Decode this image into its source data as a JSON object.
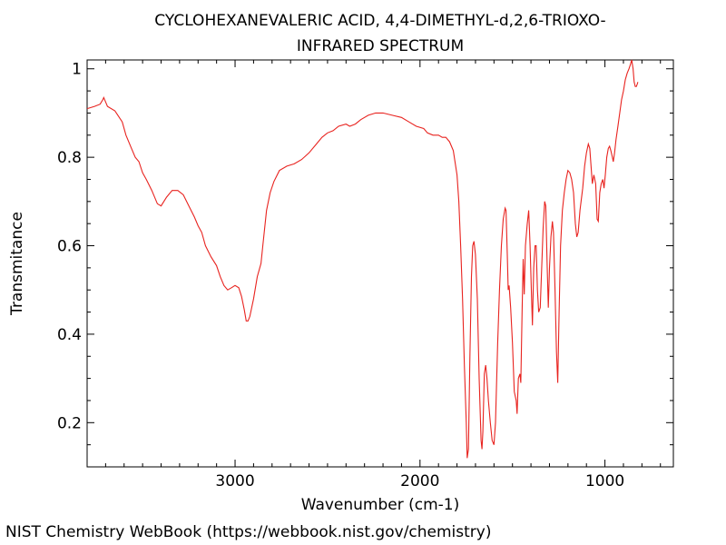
{
  "footer": "NIST Chemistry WebBook (https://webbook.nist.gov/chemistry)",
  "chart_data": {
    "type": "line",
    "title": [
      "CYCLOHEXANEVALERIC ACID, 4,4-DIMETHYL-d,2,6-TRIOXO-",
      "INFRARED SPECTRUM"
    ],
    "xlabel": "Wavenumber (cm-1)",
    "ylabel": "Transmitance",
    "xlim": [
      3800,
      630
    ],
    "ylim": [
      0.1,
      1.02
    ],
    "x_ticks": [
      3000,
      2000,
      1000
    ],
    "x_tick_labels": [
      "3000",
      "2000",
      "1000"
    ],
    "y_ticks": [
      0.2,
      0.4,
      0.6,
      0.8,
      1.0
    ],
    "y_tick_labels": [
      "0.2",
      "0.4",
      "0.6",
      "0.8",
      "1"
    ],
    "grid": false,
    "line_color": "#e8231f",
    "series": [
      {
        "points": [
          [
            3800,
            0.91
          ],
          [
            3760,
            0.915
          ],
          [
            3730,
            0.92
          ],
          [
            3715,
            0.93
          ],
          [
            3710,
            0.935
          ],
          [
            3700,
            0.925
          ],
          [
            3690,
            0.915
          ],
          [
            3650,
            0.905
          ],
          [
            3610,
            0.88
          ],
          [
            3590,
            0.85
          ],
          [
            3560,
            0.82
          ],
          [
            3540,
            0.8
          ],
          [
            3520,
            0.79
          ],
          [
            3500,
            0.765
          ],
          [
            3480,
            0.75
          ],
          [
            3450,
            0.725
          ],
          [
            3420,
            0.695
          ],
          [
            3400,
            0.69
          ],
          [
            3370,
            0.71
          ],
          [
            3340,
            0.725
          ],
          [
            3310,
            0.725
          ],
          [
            3280,
            0.715
          ],
          [
            3250,
            0.69
          ],
          [
            3220,
            0.665
          ],
          [
            3200,
            0.645
          ],
          [
            3180,
            0.63
          ],
          [
            3160,
            0.6
          ],
          [
            3130,
            0.575
          ],
          [
            3100,
            0.555
          ],
          [
            3080,
            0.53
          ],
          [
            3060,
            0.51
          ],
          [
            3040,
            0.5
          ],
          [
            3020,
            0.505
          ],
          [
            3000,
            0.51
          ],
          [
            2980,
            0.505
          ],
          [
            2965,
            0.485
          ],
          [
            2950,
            0.455
          ],
          [
            2940,
            0.43
          ],
          [
            2930,
            0.43
          ],
          [
            2920,
            0.44
          ],
          [
            2900,
            0.48
          ],
          [
            2880,
            0.53
          ],
          [
            2860,
            0.56
          ],
          [
            2850,
            0.6
          ],
          [
            2830,
            0.68
          ],
          [
            2810,
            0.72
          ],
          [
            2790,
            0.745
          ],
          [
            2760,
            0.77
          ],
          [
            2720,
            0.78
          ],
          [
            2680,
            0.785
          ],
          [
            2640,
            0.795
          ],
          [
            2600,
            0.81
          ],
          [
            2560,
            0.83
          ],
          [
            2530,
            0.845
          ],
          [
            2500,
            0.855
          ],
          [
            2470,
            0.86
          ],
          [
            2440,
            0.87
          ],
          [
            2400,
            0.875
          ],
          [
            2380,
            0.87
          ],
          [
            2350,
            0.875
          ],
          [
            2320,
            0.885
          ],
          [
            2280,
            0.895
          ],
          [
            2240,
            0.9
          ],
          [
            2200,
            0.9
          ],
          [
            2150,
            0.895
          ],
          [
            2100,
            0.89
          ],
          [
            2060,
            0.88
          ],
          [
            2020,
            0.87
          ],
          [
            1980,
            0.865
          ],
          [
            1960,
            0.855
          ],
          [
            1930,
            0.85
          ],
          [
            1900,
            0.85
          ],
          [
            1880,
            0.845
          ],
          [
            1860,
            0.845
          ],
          [
            1840,
            0.835
          ],
          [
            1820,
            0.815
          ],
          [
            1800,
            0.76
          ],
          [
            1790,
            0.7
          ],
          [
            1780,
            0.6
          ],
          [
            1770,
            0.48
          ],
          [
            1760,
            0.33
          ],
          [
            1750,
            0.2
          ],
          [
            1745,
            0.12
          ],
          [
            1738,
            0.14
          ],
          [
            1730,
            0.35
          ],
          [
            1722,
            0.53
          ],
          [
            1715,
            0.6
          ],
          [
            1708,
            0.61
          ],
          [
            1700,
            0.58
          ],
          [
            1690,
            0.48
          ],
          [
            1680,
            0.3
          ],
          [
            1670,
            0.16
          ],
          [
            1665,
            0.14
          ],
          [
            1660,
            0.18
          ],
          [
            1652,
            0.31
          ],
          [
            1645,
            0.33
          ],
          [
            1638,
            0.3
          ],
          [
            1630,
            0.25
          ],
          [
            1620,
            0.2
          ],
          [
            1610,
            0.16
          ],
          [
            1600,
            0.15
          ],
          [
            1592,
            0.2
          ],
          [
            1580,
            0.38
          ],
          [
            1570,
            0.5
          ],
          [
            1560,
            0.6
          ],
          [
            1550,
            0.66
          ],
          [
            1540,
            0.685
          ],
          [
            1535,
            0.68
          ],
          [
            1528,
            0.58
          ],
          [
            1523,
            0.5
          ],
          [
            1518,
            0.51
          ],
          [
            1510,
            0.46
          ],
          [
            1500,
            0.38
          ],
          [
            1490,
            0.27
          ],
          [
            1480,
            0.25
          ],
          [
            1475,
            0.22
          ],
          [
            1468,
            0.3
          ],
          [
            1460,
            0.31
          ],
          [
            1455,
            0.29
          ],
          [
            1448,
            0.45
          ],
          [
            1442,
            0.57
          ],
          [
            1436,
            0.49
          ],
          [
            1430,
            0.6
          ],
          [
            1420,
            0.65
          ],
          [
            1412,
            0.68
          ],
          [
            1405,
            0.6
          ],
          [
            1398,
            0.5
          ],
          [
            1392,
            0.42
          ],
          [
            1385,
            0.55
          ],
          [
            1378,
            0.6
          ],
          [
            1372,
            0.6
          ],
          [
            1365,
            0.5
          ],
          [
            1358,
            0.45
          ],
          [
            1350,
            0.46
          ],
          [
            1342,
            0.55
          ],
          [
            1334,
            0.64
          ],
          [
            1326,
            0.7
          ],
          [
            1320,
            0.69
          ],
          [
            1312,
            0.55
          ],
          [
            1306,
            0.46
          ],
          [
            1300,
            0.55
          ],
          [
            1292,
            0.62
          ],
          [
            1284,
            0.655
          ],
          [
            1278,
            0.63
          ],
          [
            1270,
            0.5
          ],
          [
            1262,
            0.36
          ],
          [
            1255,
            0.29
          ],
          [
            1248,
            0.45
          ],
          [
            1240,
            0.6
          ],
          [
            1230,
            0.68
          ],
          [
            1220,
            0.72
          ],
          [
            1210,
            0.75
          ],
          [
            1200,
            0.77
          ],
          [
            1190,
            0.765
          ],
          [
            1180,
            0.75
          ],
          [
            1170,
            0.72
          ],
          [
            1160,
            0.65
          ],
          [
            1152,
            0.62
          ],
          [
            1145,
            0.63
          ],
          [
            1135,
            0.68
          ],
          [
            1120,
            0.73
          ],
          [
            1110,
            0.78
          ],
          [
            1100,
            0.81
          ],
          [
            1090,
            0.83
          ],
          [
            1082,
            0.82
          ],
          [
            1075,
            0.78
          ],
          [
            1068,
            0.74
          ],
          [
            1060,
            0.76
          ],
          [
            1050,
            0.74
          ],
          [
            1042,
            0.66
          ],
          [
            1036,
            0.655
          ],
          [
            1028,
            0.72
          ],
          [
            1020,
            0.74
          ],
          [
            1012,
            0.75
          ],
          [
            1005,
            0.73
          ],
          [
            998,
            0.76
          ],
          [
            990,
            0.8
          ],
          [
            982,
            0.82
          ],
          [
            975,
            0.825
          ],
          [
            968,
            0.815
          ],
          [
            960,
            0.8
          ],
          [
            955,
            0.79
          ],
          [
            948,
            0.81
          ],
          [
            940,
            0.84
          ],
          [
            930,
            0.87
          ],
          [
            920,
            0.9
          ],
          [
            910,
            0.93
          ],
          [
            900,
            0.95
          ],
          [
            890,
            0.975
          ],
          [
            880,
            0.99
          ],
          [
            870,
            1.0
          ],
          [
            862,
            1.01
          ],
          [
            855,
            1.02
          ],
          [
            848,
            1.0
          ],
          [
            842,
            0.97
          ],
          [
            836,
            0.96
          ],
          [
            830,
            0.96
          ],
          [
            826,
            0.965
          ],
          [
            822,
            0.97
          ]
        ]
      }
    ]
  }
}
